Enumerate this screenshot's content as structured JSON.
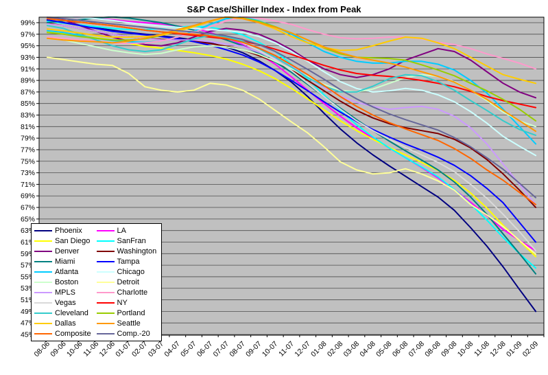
{
  "window": {
    "background_color": "#FFFFFF"
  },
  "chart_data": {
    "type": "line",
    "title": "S&P Case/Shiller Index - Index from Peak",
    "xlabel": "",
    "ylabel": "",
    "y_axis": {
      "min": 45,
      "max": 99,
      "step": 2,
      "unit": "%",
      "tick_labels": [
        "99%",
        "97%",
        "95%",
        "93%",
        "91%",
        "89%",
        "87%",
        "85%",
        "83%",
        "81%",
        "79%",
        "77%",
        "75%",
        "73%",
        "71%",
        "69%",
        "67%",
        "65%",
        "63%",
        "61%",
        "59%",
        "57%",
        "55%",
        "53%",
        "51%",
        "49%",
        "47%",
        "45%"
      ]
    },
    "plot_background": "#C0C0C0",
    "gridline_color": "#4D4D4D",
    "axis_color": "#000000",
    "grid": "horizontal-on",
    "legend_position": "inside-bottom-left",
    "categories": [
      "08-06",
      "09-06",
      "10-06",
      "11-06",
      "12-06",
      "01-07",
      "02-07",
      "03-07",
      "04-07",
      "05-07",
      "06-07",
      "07-07",
      "08-07",
      "09-07",
      "10-07",
      "11-07",
      "12-07",
      "01-08",
      "02-08",
      "03-08",
      "04-08",
      "05-08",
      "06-08",
      "07-08",
      "08-08",
      "09-08",
      "10-08",
      "11-08",
      "12-08",
      "01-09",
      "02-09"
    ],
    "series": [
      {
        "name": "Phoenix",
        "color": "#000080",
        "values": [
          99.4,
          99.0,
          98.6,
          98.1,
          97.7,
          97.3,
          97.0,
          96.7,
          96.4,
          96.0,
          95.5,
          94.8,
          93.8,
          92.4,
          90.7,
          88.7,
          86.2,
          83.3,
          80.6,
          78.2,
          76.1,
          74.2,
          72.4,
          70.6,
          68.8,
          66.5,
          63.5,
          60.3,
          56.7,
          52.8,
          49.0
        ]
      },
      {
        "name": "LA",
        "color": "#FF00FF",
        "values": [
          99.7,
          100.0,
          99.9,
          99.7,
          99.5,
          99.2,
          99.0,
          98.8,
          98.4,
          98.0,
          97.3,
          96.4,
          95.2,
          93.6,
          91.8,
          89.6,
          87.3,
          85.0,
          82.8,
          80.8,
          79.0,
          77.3,
          75.6,
          73.9,
          72.1,
          70.1,
          67.9,
          65.6,
          63.2,
          61.3,
          59.5
        ]
      },
      {
        "name": "San Diego",
        "color": "#FFFF00",
        "values": [
          97.5,
          97.2,
          96.8,
          96.4,
          96.0,
          95.4,
          94.9,
          94.6,
          94.2,
          93.8,
          93.3,
          92.7,
          91.8,
          90.7,
          89.3,
          87.6,
          85.8,
          83.9,
          82.0,
          80.3,
          78.8,
          77.4,
          76.1,
          74.8,
          73.4,
          71.7,
          69.5,
          66.9,
          63.9,
          61.2,
          58.5
        ]
      },
      {
        "name": "SanFran",
        "color": "#00FFFF",
        "values": [
          99.2,
          98.9,
          98.6,
          98.3,
          98.0,
          97.8,
          97.8,
          98.0,
          98.2,
          98.4,
          98.2,
          97.7,
          96.9,
          95.6,
          94.0,
          91.8,
          89.2,
          86.5,
          83.8,
          81.3,
          79.2,
          77.3,
          75.6,
          74.0,
          72.3,
          70.1,
          67.6,
          64.8,
          61.8,
          59.0,
          56.5
        ]
      },
      {
        "name": "Denver",
        "color": "#800080",
        "values": [
          100.0,
          99.5,
          98.5,
          97.5,
          96.5,
          95.8,
          95.2,
          95.0,
          95.5,
          96.5,
          97.5,
          98.0,
          97.7,
          97.0,
          95.8,
          94.3,
          92.5,
          91.0,
          90.0,
          89.5,
          90.0,
          91.0,
          92.5,
          93.5,
          94.5,
          94.0,
          92.5,
          90.5,
          88.5,
          87.0,
          86.0
        ]
      },
      {
        "name": "Washington",
        "color": "#800000",
        "values": [
          98.9,
          98.5,
          98.0,
          97.5,
          97.0,
          96.6,
          96.3,
          96.1,
          96.0,
          95.8,
          95.4,
          94.9,
          94.3,
          93.3,
          92.2,
          90.8,
          89.0,
          87.2,
          85.4,
          83.8,
          82.5,
          81.5,
          80.8,
          80.3,
          79.8,
          78.8,
          77.3,
          75.3,
          72.8,
          70.0,
          67.0
        ]
      },
      {
        "name": "Miami",
        "color": "#008080",
        "values": [
          99.0,
          99.3,
          99.5,
          99.8,
          100.0,
          99.8,
          99.4,
          99.0,
          98.4,
          97.7,
          96.9,
          96.0,
          95.0,
          93.7,
          92.2,
          90.4,
          88.3,
          86.2,
          84.2,
          82.2,
          80.3,
          78.5,
          76.8,
          75.2,
          73.5,
          71.4,
          68.8,
          65.8,
          62.4,
          59.0,
          55.5
        ]
      },
      {
        "name": "Tampa",
        "color": "#0000FF",
        "values": [
          99.5,
          99.0,
          98.5,
          98.0,
          97.5,
          97.2,
          96.9,
          96.6,
          96.2,
          95.7,
          95.1,
          94.3,
          93.4,
          92.2,
          90.7,
          89.0,
          87.2,
          85.3,
          83.5,
          81.9,
          80.5,
          79.2,
          78.0,
          76.9,
          75.7,
          74.3,
          72.5,
          70.3,
          67.8,
          64.4,
          61.0
        ]
      },
      {
        "name": "Atlanta",
        "color": "#00CCFF",
        "values": [
          97.6,
          97.3,
          96.8,
          96.3,
          95.9,
          95.7,
          95.6,
          95.8,
          96.5,
          97.5,
          98.7,
          99.7,
          100.0,
          99.3,
          98.3,
          97.0,
          95.5,
          94.0,
          93.0,
          92.3,
          92.0,
          92.0,
          92.3,
          92.3,
          91.8,
          90.8,
          89.0,
          86.8,
          84.0,
          81.0,
          78.0
        ]
      },
      {
        "name": "Chicago",
        "color": "#CCFFFF",
        "values": [
          99.8,
          100.0,
          99.9,
          99.7,
          99.4,
          99.0,
          98.7,
          98.4,
          98.2,
          98.0,
          97.8,
          97.6,
          97.3,
          96.6,
          95.5,
          94.0,
          92.3,
          90.5,
          88.8,
          87.6,
          87.0,
          87.2,
          87.6,
          87.3,
          86.5,
          85.3,
          83.6,
          81.6,
          79.3,
          77.6,
          76.0
        ]
      },
      {
        "name": "Boston",
        "color": "#CCFFCC",
        "values": [
          96.4,
          96.0,
          95.4,
          94.8,
          94.2,
          93.8,
          93.5,
          93.7,
          94.3,
          94.8,
          95.0,
          94.8,
          94.3,
          93.5,
          92.3,
          91.0,
          89.7,
          88.3,
          87.3,
          87.0,
          87.5,
          88.5,
          89.5,
          90.0,
          89.7,
          88.8,
          87.3,
          85.5,
          83.5,
          82.0,
          81.0
        ]
      },
      {
        "name": "Detroit",
        "color": "#FFFF99",
        "values": [
          93.0,
          92.6,
          92.2,
          91.8,
          91.6,
          90.2,
          87.9,
          87.3,
          87.0,
          87.3,
          88.5,
          88.2,
          87.3,
          85.8,
          83.8,
          81.8,
          79.9,
          77.5,
          74.9,
          73.5,
          72.8,
          73.0,
          73.7,
          72.8,
          71.6,
          70.0,
          67.5,
          65.7,
          63.7,
          61.3,
          58.9
        ]
      },
      {
        "name": "MPLS",
        "color": "#CC99FF",
        "values": [
          98.8,
          98.5,
          98.0,
          97.5,
          97.0,
          96.6,
          96.3,
          96.0,
          96.0,
          96.0,
          95.7,
          95.3,
          94.9,
          93.9,
          92.8,
          91.5,
          89.5,
          87.8,
          86.3,
          85.2,
          84.5,
          84.0,
          84.3,
          84.5,
          84.0,
          82.8,
          80.8,
          78.0,
          74.5,
          71.0,
          67.5
        ]
      },
      {
        "name": "Charlotte",
        "color": "#FF99CC",
        "values": [
          96.5,
          96.3,
          96.0,
          95.8,
          95.5,
          95.4,
          95.5,
          95.8,
          96.5,
          97.3,
          98.3,
          99.3,
          100.0,
          99.8,
          99.3,
          98.7,
          97.8,
          97.0,
          96.4,
          96.2,
          96.3,
          96.5,
          96.5,
          96.2,
          95.6,
          95.2,
          94.5,
          93.6,
          92.8,
          92.0,
          91.0
        ]
      },
      {
        "name": "Vegas",
        "color": "#D9D9D9",
        "values": [
          100.0,
          99.7,
          99.4,
          99.1,
          98.9,
          98.7,
          98.5,
          98.2,
          97.9,
          97.5,
          97.0,
          96.4,
          95.5,
          94.2,
          92.6,
          90.7,
          88.5,
          86.2,
          84.0,
          82.0,
          80.3,
          78.8,
          77.4,
          76.1,
          74.8,
          73.2,
          71.0,
          68.6,
          65.8,
          62.8,
          59.5
        ]
      },
      {
        "name": "NY",
        "color": "#FF0000",
        "values": [
          99.7,
          99.4,
          99.1,
          98.8,
          98.5,
          98.1,
          97.7,
          97.4,
          97.1,
          96.8,
          96.5,
          96.2,
          95.8,
          95.2,
          94.4,
          93.5,
          92.5,
          91.6,
          90.8,
          90.2,
          89.9,
          89.7,
          89.4,
          89.0,
          88.5,
          87.9,
          87.1,
          86.2,
          85.5,
          84.9,
          84.3
        ]
      },
      {
        "name": "Cleveland",
        "color": "#33CCCC",
        "values": [
          98.5,
          98.0,
          97.0,
          96.0,
          95.0,
          94.3,
          94.0,
          94.3,
          95.2,
          96.2,
          96.8,
          96.5,
          95.8,
          94.5,
          93.0,
          91.3,
          89.5,
          88.0,
          87.0,
          87.0,
          88.0,
          89.3,
          90.0,
          89.8,
          88.8,
          87.3,
          85.5,
          83.8,
          82.0,
          80.5,
          79.5
        ]
      },
      {
        "name": "Portland",
        "color": "#99CC00",
        "values": [
          97.3,
          97.0,
          96.6,
          96.3,
          96.0,
          96.0,
          96.2,
          96.8,
          97.5,
          98.3,
          99.2,
          100.0,
          99.8,
          99.2,
          98.3,
          97.2,
          96.0,
          94.6,
          93.6,
          93.0,
          92.9,
          92.8,
          92.5,
          91.7,
          90.8,
          89.8,
          88.5,
          87.2,
          85.7,
          84.0,
          82.0
        ]
      },
      {
        "name": "Dallas",
        "color": "#FFCC00",
        "values": [
          97.9,
          97.6,
          97.2,
          96.8,
          96.5,
          96.5,
          96.6,
          96.8,
          97.5,
          98.3,
          99.2,
          100.0,
          99.7,
          99.0,
          97.9,
          96.6,
          95.5,
          94.7,
          94.2,
          94.3,
          95.0,
          95.8,
          96.5,
          96.3,
          95.5,
          94.5,
          93.0,
          91.5,
          90.0,
          89.2,
          88.5
        ]
      },
      {
        "name": "Seattle",
        "color": "#FF9900",
        "values": [
          96.3,
          96.0,
          95.8,
          95.7,
          95.5,
          95.8,
          96.3,
          97.0,
          97.8,
          98.5,
          99.3,
          100.0,
          99.7,
          99.0,
          98.2,
          97.2,
          96.0,
          94.8,
          93.8,
          93.0,
          92.5,
          92.0,
          91.3,
          90.5,
          89.7,
          88.7,
          87.3,
          85.7,
          83.8,
          82.0,
          80.2
        ]
      },
      {
        "name": "Composite",
        "color": "#FF6600",
        "values": [
          99.7,
          99.4,
          99.1,
          98.8,
          98.5,
          98.1,
          97.7,
          97.4,
          97.2,
          97.0,
          96.7,
          96.3,
          95.6,
          94.6,
          93.3,
          91.7,
          90.0,
          88.1,
          86.2,
          84.5,
          83.0,
          81.7,
          80.6,
          79.6,
          78.6,
          77.2,
          75.5,
          73.5,
          71.7,
          69.6,
          67.5
        ]
      },
      {
        "name": "Comp.-20",
        "color": "#666699",
        "values": [
          99.9,
          99.7,
          99.4,
          99.1,
          98.8,
          98.5,
          98.2,
          97.9,
          97.6,
          97.4,
          97.1,
          96.7,
          96.1,
          95.2,
          94.0,
          92.5,
          90.9,
          89.2,
          87.4,
          85.8,
          84.4,
          83.2,
          82.2,
          81.3,
          80.4,
          79.1,
          77.5,
          75.6,
          73.6,
          71.2,
          68.7
        ]
      }
    ]
  }
}
